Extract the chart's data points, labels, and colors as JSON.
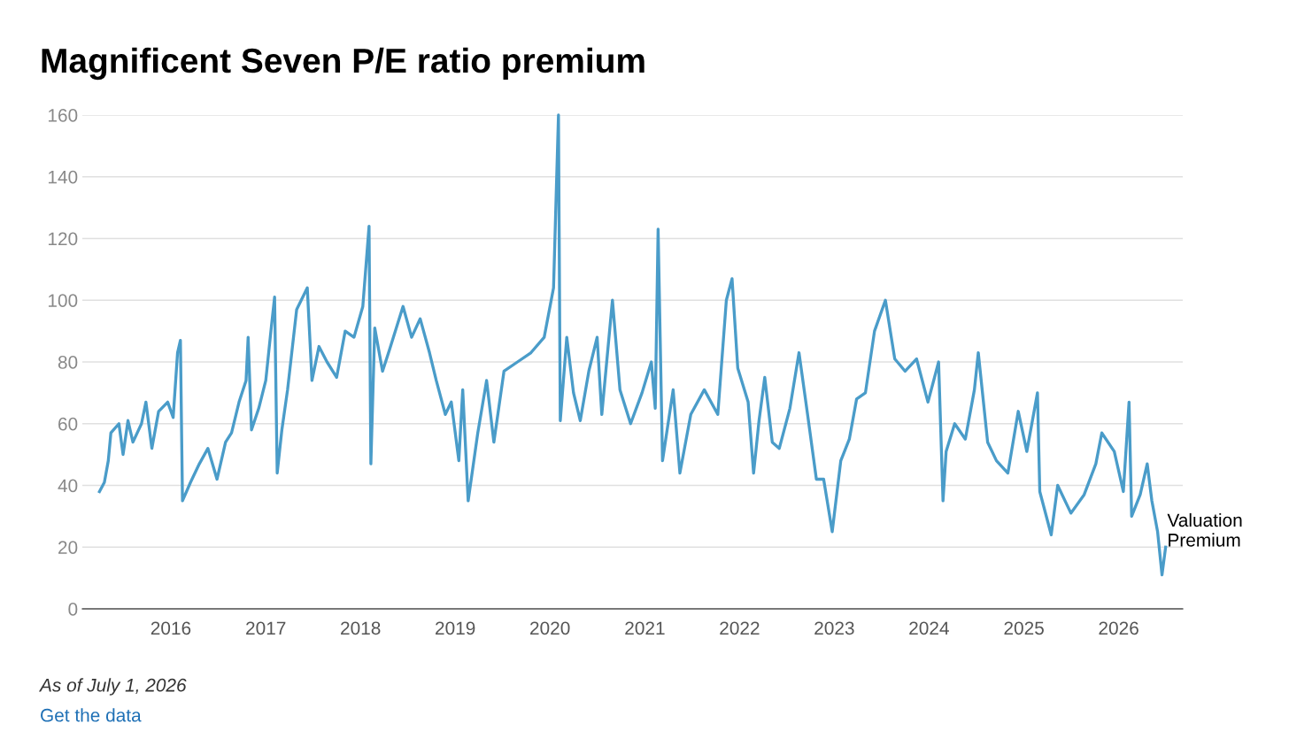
{
  "chart_data": {
    "type": "line",
    "title": "Magnificent Seven P/E ratio premium",
    "annotations": [
      "As of July 1, 2026",
      "Get the data"
    ],
    "x": [
      "2015-04-01",
      "2015-04-20",
      "2015-05-05",
      "2015-05-15",
      "2015-06-15",
      "2015-07-01",
      "2015-07-20",
      "2015-08-08",
      "2015-09-10",
      "2015-09-27",
      "2015-10-20",
      "2015-11-15",
      "2015-12-20",
      "2016-01-10",
      "2016-01-27",
      "2016-02-07",
      "2016-02-15",
      "2016-03-17",
      "2016-04-20",
      "2016-05-23",
      "2016-06-27",
      "2016-07-30",
      "2016-08-22",
      "2016-09-20",
      "2016-10-17",
      "2016-10-25",
      "2016-11-07",
      "2016-12-05",
      "2017-01-01",
      "2017-01-22",
      "2017-02-04",
      "2017-02-14",
      "2017-03-04",
      "2017-03-26",
      "2017-04-30",
      "2017-06-10",
      "2017-06-28",
      "2017-07-25",
      "2017-08-25",
      "2017-10-01",
      "2017-11-03",
      "2017-12-07",
      "2018-01-10",
      "2018-02-03",
      "2018-02-10",
      "2018-02-25",
      "2018-03-27",
      "2018-04-23",
      "2018-06-14",
      "2018-07-17",
      "2018-08-19",
      "2018-09-24",
      "2018-10-20",
      "2018-11-24",
      "2018-12-17",
      "2019-01-15",
      "2019-01-30",
      "2019-02-20",
      "2019-03-29",
      "2019-05-02",
      "2019-05-30",
      "2019-07-08",
      "2019-08-29",
      "2019-10-20",
      "2019-12-10",
      "2020-01-15",
      "2020-02-03",
      "2020-02-10",
      "2020-03-06",
      "2020-04-01",
      "2020-04-27",
      "2020-05-30",
      "2020-07-01",
      "2020-07-19",
      "2020-08-29",
      "2020-09-27",
      "2020-11-07",
      "2020-12-21",
      "2021-01-26",
      "2021-02-10",
      "2021-02-21",
      "2021-03-10",
      "2021-04-20",
      "2021-05-16",
      "2021-06-27",
      "2021-08-18",
      "2021-10-09",
      "2021-11-11",
      "2021-12-03",
      "2021-12-25",
      "2022-02-03",
      "2022-02-24",
      "2022-03-17",
      "2022-04-08",
      "2022-05-07",
      "2022-06-03",
      "2022-07-14",
      "2022-08-18",
      "2022-09-20",
      "2022-10-24",
      "2022-11-21",
      "2022-12-24",
      "2023-01-26",
      "2023-02-28",
      "2023-03-28",
      "2023-05-01",
      "2023-06-05",
      "2023-07-17",
      "2023-08-22",
      "2023-10-01",
      "2023-11-14",
      "2023-12-28",
      "2024-02-07",
      "2024-02-24",
      "2024-03-07",
      "2024-04-09",
      "2024-05-20",
      "2024-06-24",
      "2024-07-09",
      "2024-08-14",
      "2024-09-17",
      "2024-10-31",
      "2024-12-10",
      "2025-01-12",
      "2025-02-22",
      "2025-03-03",
      "2025-04-16",
      "2025-05-11",
      "2025-07-01",
      "2025-08-21",
      "2025-10-05",
      "2025-10-28",
      "2025-12-15",
      "2026-01-19",
      "2026-02-10",
      "2026-02-20",
      "2026-03-25",
      "2026-04-21",
      "2026-05-09",
      "2026-05-31",
      "2026-06-17",
      "2026-07-01"
    ],
    "series": [
      {
        "name": "Valuation Premium",
        "color": "#4a9cc9",
        "values": [
          38,
          41,
          48,
          57,
          60,
          50,
          61,
          54,
          60,
          67,
          52,
          64,
          67,
          62,
          83,
          87,
          35,
          41,
          47,
          52,
          42,
          54,
          57,
          67,
          74,
          88,
          58,
          65,
          74,
          91,
          101,
          44,
          58,
          71,
          97,
          104,
          74,
          85,
          80,
          75,
          90,
          88,
          98,
          124,
          47,
          91,
          77,
          84,
          98,
          88,
          94,
          83,
          74,
          63,
          67,
          48,
          71,
          35,
          57,
          74,
          54,
          77,
          80,
          83,
          88,
          104,
          160,
          61,
          88,
          70,
          61,
          77,
          88,
          63,
          100,
          71,
          60,
          70,
          80,
          65,
          123,
          48,
          71,
          44,
          63,
          71,
          63,
          100,
          107,
          78,
          67,
          44,
          61,
          75,
          54,
          52,
          65,
          83,
          63,
          42,
          42,
          25,
          48,
          55,
          68,
          70,
          90,
          100,
          81,
          77,
          81,
          67,
          80,
          35,
          51,
          60,
          55,
          71,
          83,
          54,
          48,
          44,
          64,
          51,
          70,
          38,
          24,
          40,
          31,
          37,
          47,
          57,
          51,
          38,
          67,
          30,
          37,
          47,
          35,
          25,
          11,
          20
        ]
      }
    ],
    "xlim": [
      "2015-01-25",
      "2026-09-05"
    ],
    "xticks": [
      {
        "value": "2016-01-01",
        "label": "2016"
      },
      {
        "value": "2017-01-01",
        "label": "2017"
      },
      {
        "value": "2018-01-01",
        "label": "2018"
      },
      {
        "value": "2019-01-01",
        "label": "2019"
      },
      {
        "value": "2020-01-01",
        "label": "2020"
      },
      {
        "value": "2021-01-01",
        "label": "2021"
      },
      {
        "value": "2022-01-01",
        "label": "2022"
      },
      {
        "value": "2023-01-01",
        "label": "2023"
      },
      {
        "value": "2024-01-01",
        "label": "2024"
      },
      {
        "value": "2025-01-01",
        "label": "2025"
      },
      {
        "value": "2026-01-01",
        "label": "2026"
      }
    ],
    "ylim": [
      0,
      160
    ],
    "yticks": [
      0,
      20,
      40,
      60,
      80,
      100,
      120,
      140,
      160
    ],
    "grid": "y",
    "legend": false,
    "marker": "none",
    "line_style": "solid"
  }
}
